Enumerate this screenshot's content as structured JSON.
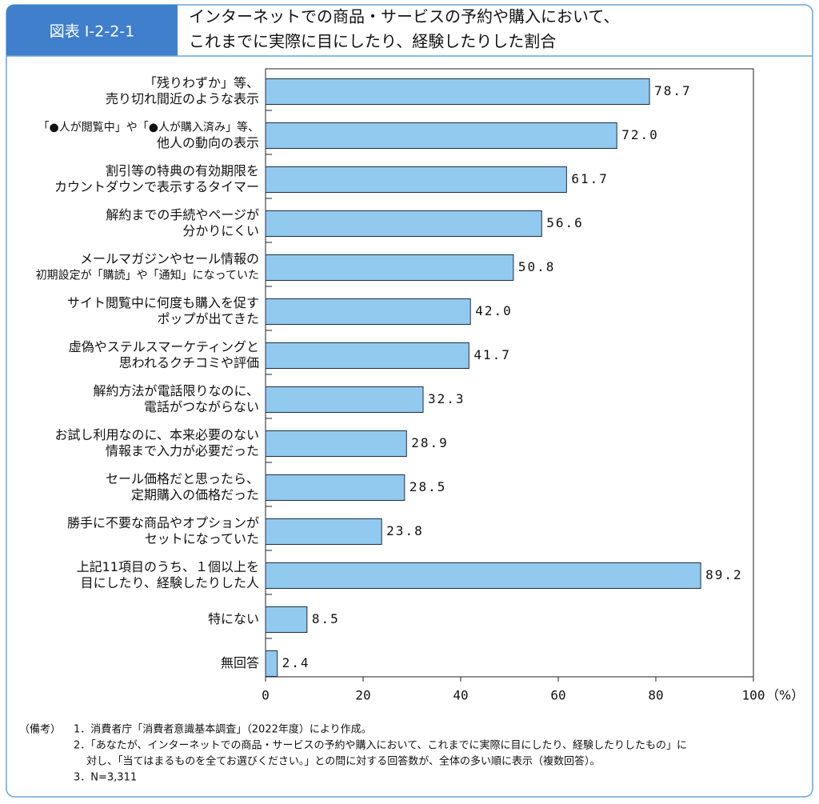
{
  "header": {
    "tag": "図表 I-2-2-1",
    "title": [
      "インターネットでの商品・サービスの予約や購入において、",
      "これまでに実際に目にしたり、経験したりした割合"
    ]
  },
  "chart_data": {
    "type": "hbar",
    "categories": [
      [
        "「残りわずか」等、",
        "売り切れ間近のような表示"
      ],
      [
        "「●人が閲覧中」や「●人が購入済み」等、",
        "他人の動向の表示"
      ],
      [
        "割引等の特典の有効期限を",
        "カウントダウンで表示するタイマー"
      ],
      [
        "解約までの手続やページが",
        "分かりにくい"
      ],
      [
        "メールマガジンやセール情報の",
        "初期設定が「購読」や「通知」になっていた"
      ],
      [
        "サイト閲覧中に何度も購入を促す",
        "ポップが出てきた"
      ],
      [
        "虚偽やステルスマーケティングと",
        "思われるクチコミや評価"
      ],
      [
        "解約方法が電話限りなのに、",
        "電話がつながらない"
      ],
      [
        "お試し利用なのに、本来必要のない",
        "情報まで入力が必要だった"
      ],
      [
        "セール価格だと思ったら、",
        "定期購入の価格だった"
      ],
      [
        "勝手に不要な商品やオプションが",
        "セットになっていた"
      ],
      [
        "上記11項目のうち、１個以上を",
        "目にしたり、経験したりした人"
      ],
      [
        "特にない"
      ],
      [
        "無回答"
      ]
    ],
    "values": [
      78.7,
      72.0,
      61.7,
      56.6,
      50.8,
      42.0,
      41.7,
      32.3,
      28.9,
      28.5,
      23.8,
      89.2,
      8.5,
      2.4
    ],
    "value_labels": [
      "78.7",
      "72.0",
      "61.7",
      "56.6",
      "50.8",
      "42.0",
      "41.7",
      "32.3",
      "28.9",
      "28.5",
      "23.8",
      "89.2",
      "8.5",
      "2.4"
    ],
    "color": "#92c9ee",
    "xlim": [
      0,
      100
    ],
    "xticks": [
      0,
      20,
      40,
      60,
      80,
      100
    ],
    "x_unit": "（%）",
    "grid": false
  },
  "notes": {
    "label": "（備考）",
    "items": [
      [
        "1．消費者庁「消費者意識基本調査」（2022年度）により作成。"
      ],
      [
        "2．「あなたが、インターネットでの商品・サービスの予約や購入において、これまでに実際に目にしたり、経験したりしたもの」に",
        "対し、「当てはまるものを全てお選びください。」との問に対する回答数が、全体の多い順に表示（複数回答）。"
      ],
      [
        "3．N=3,311"
      ]
    ]
  }
}
